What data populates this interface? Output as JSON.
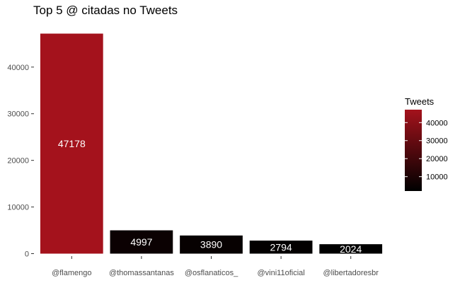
{
  "chart_data": {
    "type": "bar",
    "title": "Top 5 @ citadas no Tweets",
    "categories": [
      "@flamengo",
      "@thomassantanas",
      "@osflanaticos_",
      "@vini11oficial",
      "@libertadoresbr"
    ],
    "values": [
      47178,
      4997,
      3890,
      2794,
      2024
    ],
    "data_labels": [
      "47178",
      "4997",
      "3890",
      "2794",
      "2024"
    ],
    "ylim": [
      0,
      48000
    ],
    "y_ticks": [
      0,
      10000,
      20000,
      30000,
      40000
    ],
    "y_tick_labels": [
      "0",
      "10000",
      "20000",
      "30000",
      "40000"
    ],
    "grid": false,
    "legend": {
      "title": "Tweets",
      "placement": "right",
      "type": "colorbar",
      "range": [
        2024,
        47178
      ],
      "ticks": [
        10000,
        20000,
        30000,
        40000
      ],
      "tick_labels": [
        "10000",
        "20000",
        "30000",
        "40000"
      ],
      "color_low": "#000000",
      "color_high": "#a4121c"
    }
  }
}
